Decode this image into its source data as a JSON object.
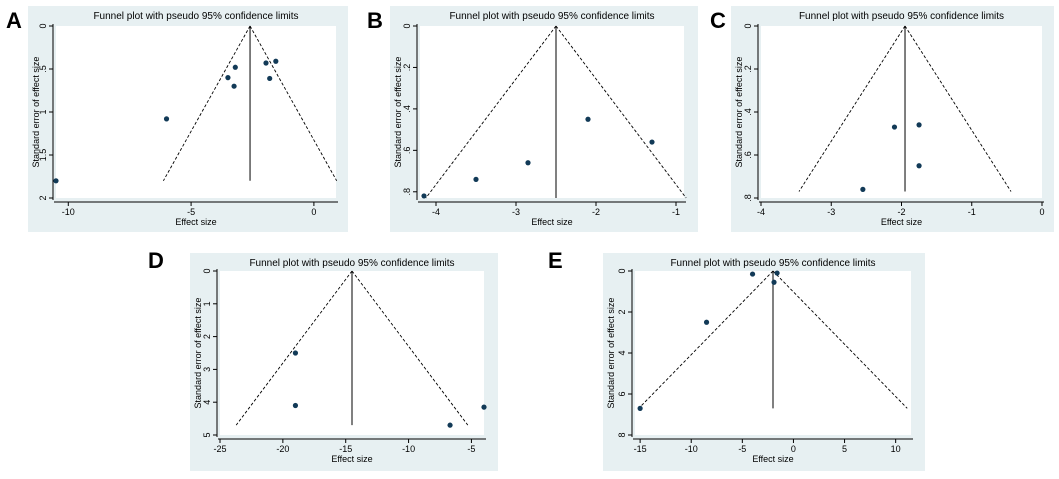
{
  "chart_data": [
    {
      "type": "scatter",
      "panel": "A",
      "title": "Funnel plot with pseudo 95% confidence limits",
      "xlabel": "Effect size",
      "ylabel": "Standard error of effect size",
      "xlim": [
        -10.5,
        0.9
      ],
      "ylim": [
        0,
        2
      ],
      "y_reversed": true,
      "xticks": [
        -10,
        -5,
        0
      ],
      "xtick_labels": [
        "-10",
        "-5",
        "0"
      ],
      "yticks": [
        0,
        0.5,
        1,
        1.5,
        2
      ],
      "ytick_labels": [
        "0",
        ".5",
        "1",
        "1.5",
        "2"
      ],
      "pooled_effect": -2.6,
      "ci_max_se": 1.8,
      "points": [
        {
          "x": -10.5,
          "y": 1.8
        },
        {
          "x": -6.0,
          "y": 1.08
        },
        {
          "x": -3.5,
          "y": 0.6
        },
        {
          "x": -3.2,
          "y": 0.48
        },
        {
          "x": -3.25,
          "y": 0.7
        },
        {
          "x": -1.95,
          "y": 0.43
        },
        {
          "x": -1.55,
          "y": 0.41
        },
        {
          "x": -1.8,
          "y": 0.61
        }
      ]
    },
    {
      "type": "scatter",
      "panel": "B",
      "title": "Funnel plot with pseudo 95% confidence limits",
      "xlabel": "Effect size",
      "ylabel": "Standard error of effect size",
      "xlim": [
        -4.2,
        -0.9
      ],
      "ylim": [
        0,
        0.83
      ],
      "y_reversed": true,
      "xticks": [
        -4,
        -3,
        -2,
        -1
      ],
      "xtick_labels": [
        "-4",
        "-3",
        "-2",
        "-1"
      ],
      "yticks": [
        0,
        0.2,
        0.4,
        0.6,
        0.8
      ],
      "ytick_labels": [
        "0",
        ".2",
        ".4",
        ".6",
        ".8"
      ],
      "pooled_effect": -2.5,
      "ci_max_se": 0.83,
      "points": [
        {
          "x": -4.15,
          "y": 0.82
        },
        {
          "x": -3.5,
          "y": 0.74
        },
        {
          "x": -2.85,
          "y": 0.66
        },
        {
          "x": -2.1,
          "y": 0.45
        },
        {
          "x": -1.3,
          "y": 0.56
        }
      ]
    },
    {
      "type": "scatter",
      "panel": "C",
      "title": "Funnel plot with pseudo 95% confidence limits",
      "xlabel": "Effect size",
      "ylabel": "Standard error of effect size",
      "xlim": [
        -4,
        0
      ],
      "ylim": [
        0,
        0.8
      ],
      "y_reversed": true,
      "xticks": [
        -4,
        -3,
        -2,
        -1,
        0
      ],
      "xtick_labels": [
        "-4",
        "-3",
        "-2",
        "-1",
        "0"
      ],
      "yticks": [
        0,
        0.2,
        0.4,
        0.6,
        0.8
      ],
      "ytick_labels": [
        "0",
        ".2",
        ".4",
        ".6",
        ".8"
      ],
      "pooled_effect": -1.95,
      "ci_max_se": 0.77,
      "points": [
        {
          "x": -2.55,
          "y": 0.76
        },
        {
          "x": -2.1,
          "y": 0.47
        },
        {
          "x": -1.75,
          "y": 0.46
        },
        {
          "x": -1.75,
          "y": 0.65
        }
      ]
    },
    {
      "type": "scatter",
      "panel": "D",
      "title": "Funnel plot with pseudo 95% confidence limits",
      "xlabel": "Effect size",
      "ylabel": "Standard error of effect size",
      "xlim": [
        -25,
        -4
      ],
      "ylim": [
        0,
        5
      ],
      "y_reversed": true,
      "xticks": [
        -25,
        -20,
        -15,
        -10,
        -5
      ],
      "xtick_labels": [
        "-25",
        "-20",
        "-15",
        "-10",
        "-5"
      ],
      "yticks": [
        0,
        1,
        2,
        3,
        4,
        5
      ],
      "ytick_labels": [
        "0",
        "1",
        "2",
        "3",
        "4",
        "5"
      ],
      "pooled_effect": -14.5,
      "ci_max_se": 4.7,
      "points": [
        {
          "x": -19.0,
          "y": 2.5
        },
        {
          "x": -19.0,
          "y": 4.1
        },
        {
          "x": -6.7,
          "y": 4.7
        },
        {
          "x": -4.0,
          "y": 4.15
        }
      ]
    },
    {
      "type": "scatter",
      "panel": "E",
      "title": "Funnel plot with pseudo 95% confidence limits",
      "xlabel": "Effect size",
      "ylabel": "Standard error of effect size",
      "xlim": [
        -15.5,
        11.5
      ],
      "ylim": [
        0,
        8
      ],
      "y_reversed": true,
      "xticks": [
        -15,
        -10,
        -5,
        0,
        5,
        10
      ],
      "xtick_labels": [
        "-15",
        "-10",
        "-5",
        "0",
        "5",
        "10"
      ],
      "yticks": [
        0,
        2,
        4,
        6,
        8
      ],
      "ytick_labels": [
        "0",
        "2",
        "4",
        "6",
        "8"
      ],
      "pooled_effect": -2.0,
      "ci_max_se": 6.7,
      "points": [
        {
          "x": -15.0,
          "y": 6.7
        },
        {
          "x": -8.5,
          "y": 2.5
        },
        {
          "x": -4.0,
          "y": 0.15
        },
        {
          "x": -1.6,
          "y": 0.1
        },
        {
          "x": -1.9,
          "y": 0.55
        }
      ]
    }
  ],
  "panel_labels": [
    "A",
    "B",
    "C",
    "D",
    "E"
  ]
}
